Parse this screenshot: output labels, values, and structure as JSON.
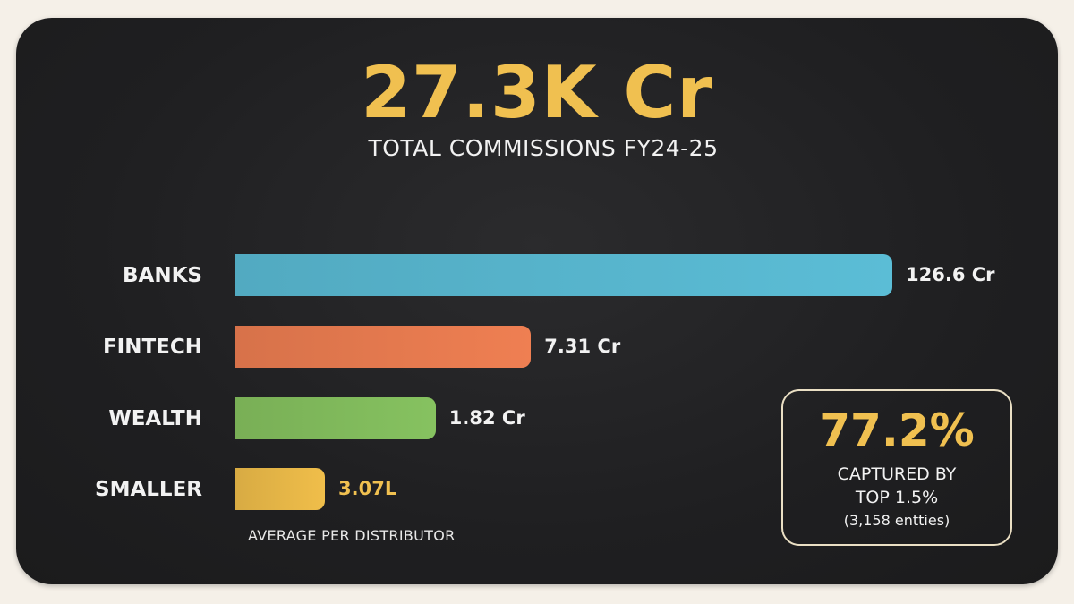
{
  "headline": "27.3K Cr",
  "subheadline": "TOTAL COMMISSIONS FY24-25",
  "chart_data": {
    "type": "bar",
    "orientation": "horizontal",
    "categories": [
      "BANKS",
      "FINTECH",
      "WEALTH",
      "SMALLER"
    ],
    "values_cr": [
      126.6,
      7.31,
      1.82,
      0.0307
    ],
    "value_labels": [
      "126.6 Cr",
      "7.31 Cr",
      "1.82 Cr",
      "3.07L"
    ],
    "colors": [
      "#5bbdd6",
      "#ef7f52",
      "#86c260",
      "#f0be4a"
    ],
    "value_label_colors": [
      "#f2f2f2",
      "#f2f2f2",
      "#f2f2f2",
      "#f0c050"
    ],
    "scale": "non-linear",
    "legend": "none",
    "grid": false,
    "title": "",
    "xlabel": "",
    "ylabel": "",
    "footnote": "AVERAGE PER DISTRIBUTOR"
  },
  "stat_box": {
    "value": "77.2%",
    "line1": "CAPTURED BY",
    "line2": "TOP 1.5%",
    "line3": "(3,158 entties)"
  },
  "colors": {
    "accent": "#f0c050",
    "background": "#1f1f21",
    "page": "#f5f0e8"
  }
}
